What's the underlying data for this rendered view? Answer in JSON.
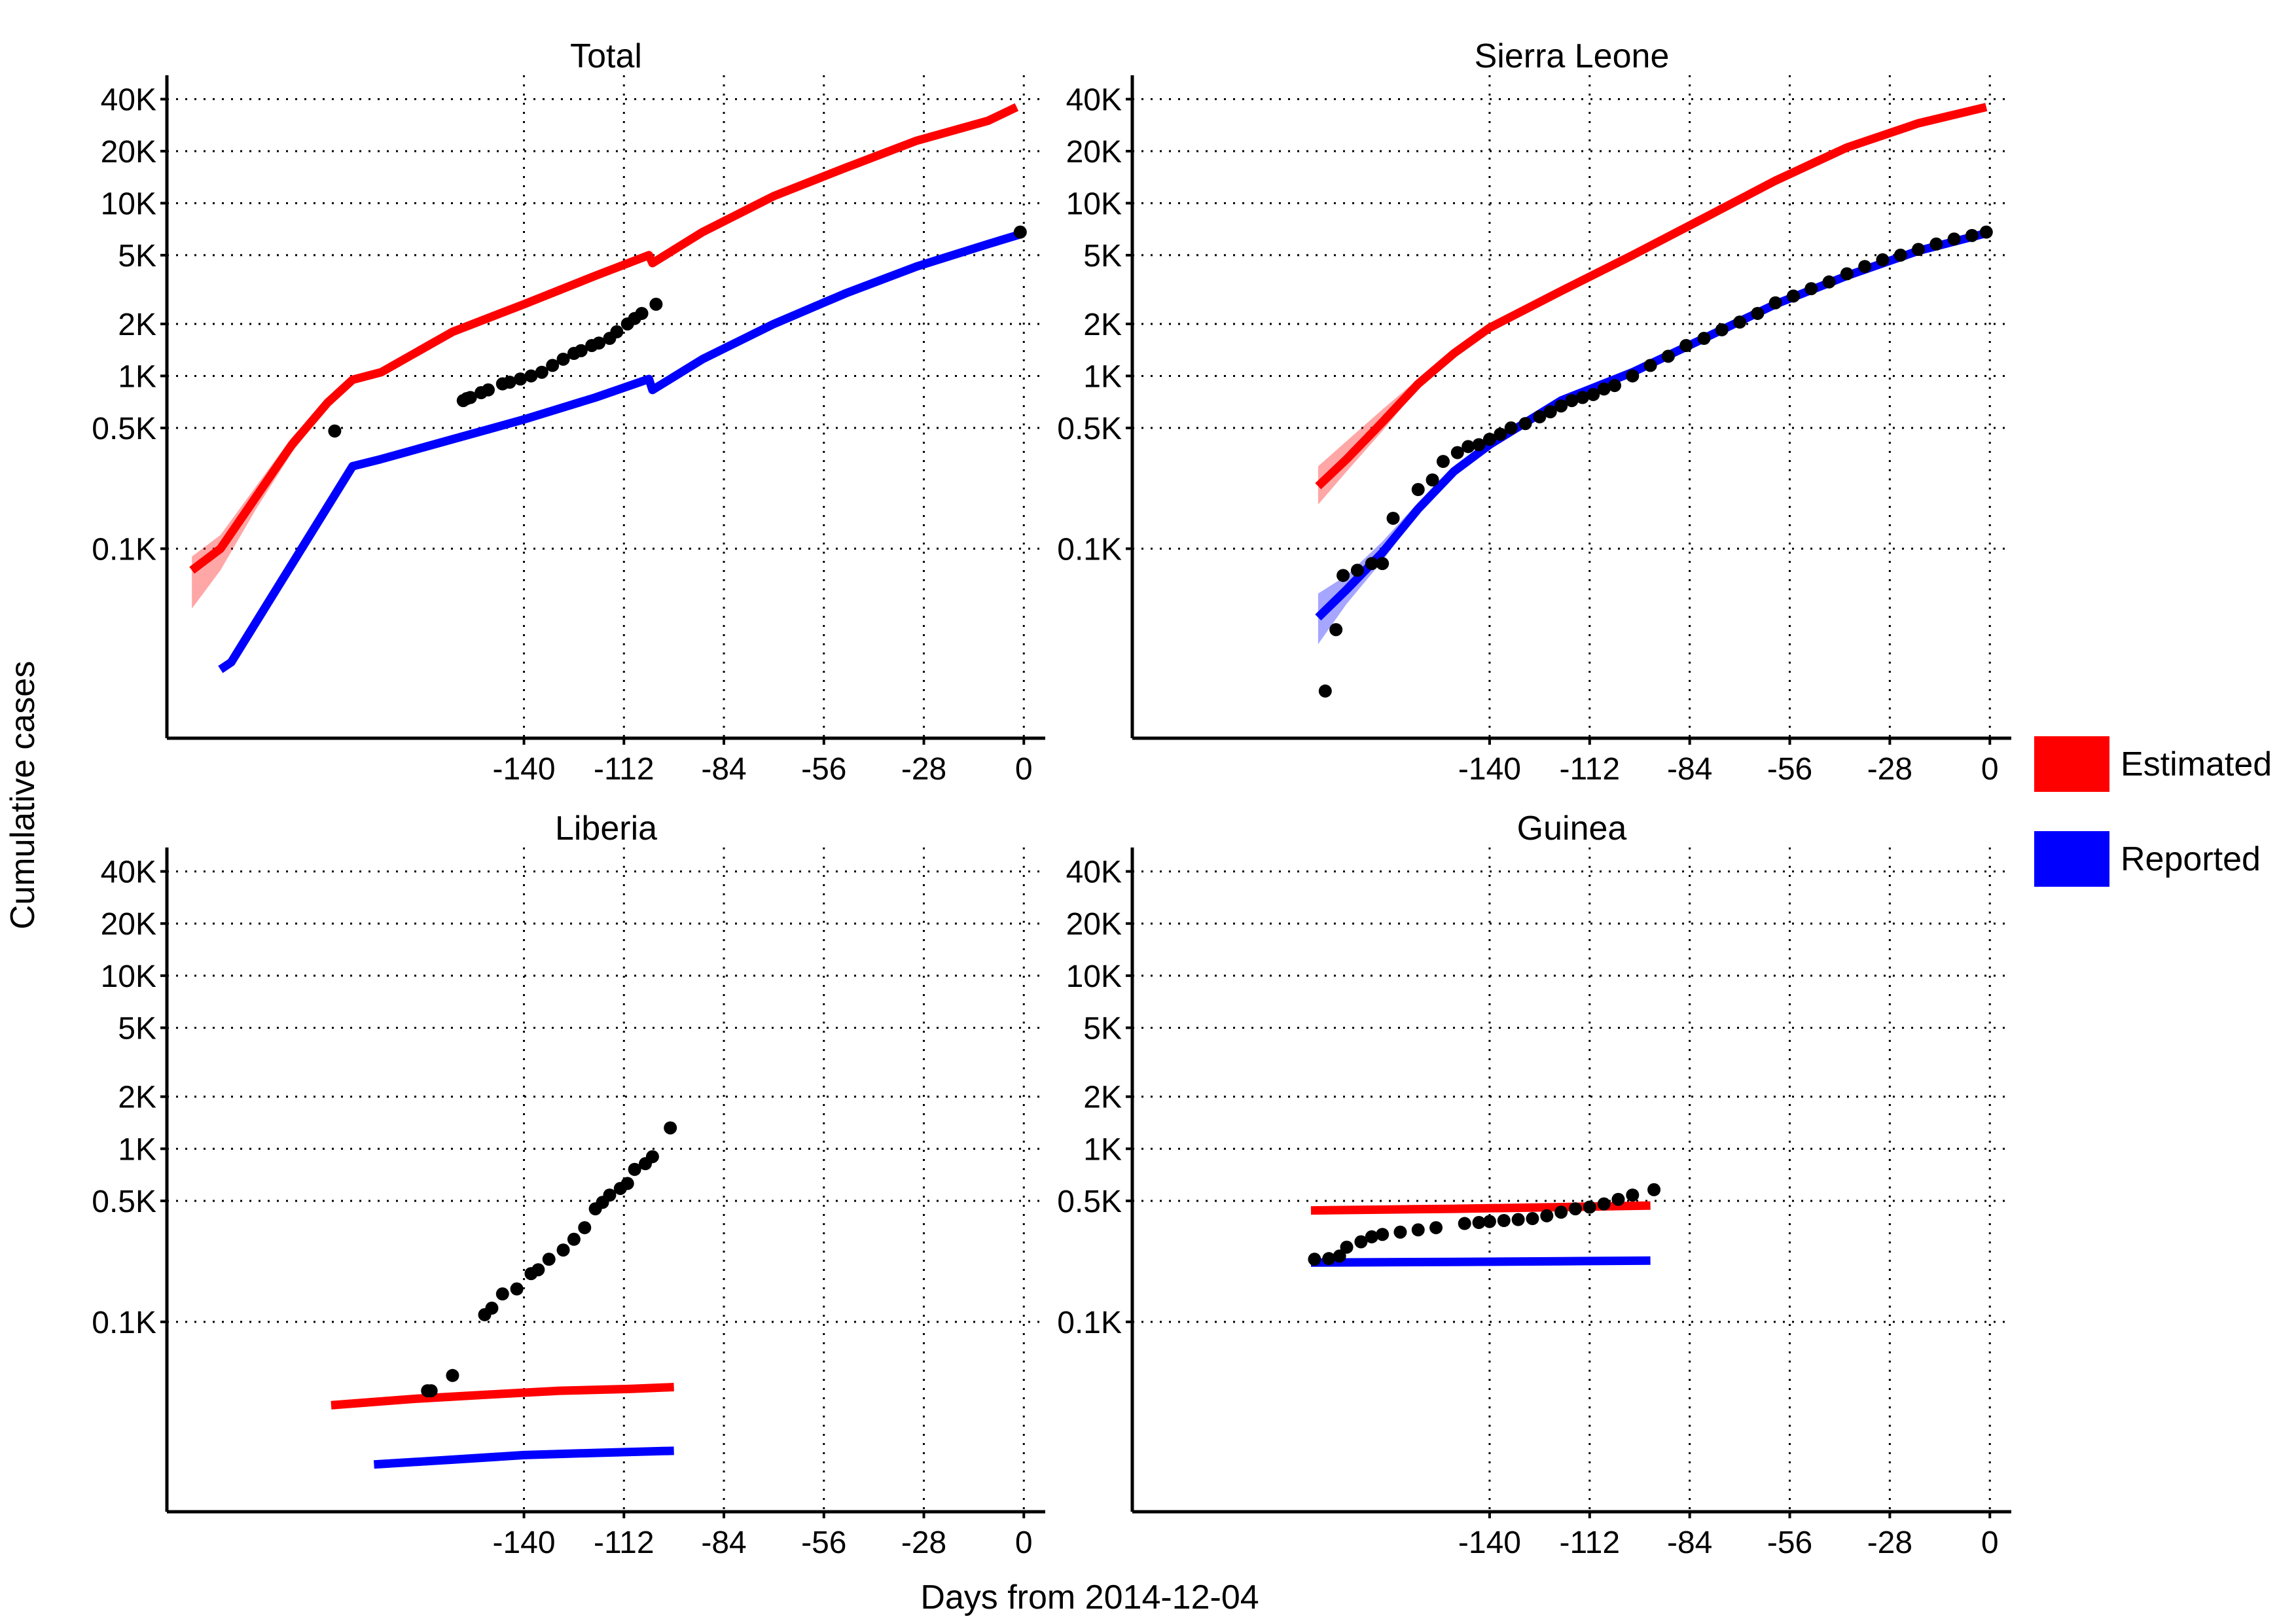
{
  "figure": {
    "xlabel": "Days from 2014-12-04",
    "ylabel": "Cumulative cases"
  },
  "legend": {
    "placement": "right",
    "items": [
      {
        "label": "Estimated",
        "color": "#ff0000"
      },
      {
        "label": "Reported",
        "color": "#0000ff"
      }
    ]
  },
  "chart_data": [
    {
      "type": "line",
      "title": "Total",
      "x_ticks": [
        -140,
        -112,
        -84,
        -56,
        -28,
        0
      ],
      "y_ticks": [
        {
          "value": 100,
          "label": "0.1K"
        },
        {
          "value": 500,
          "label": "0.5K"
        },
        {
          "value": 1000,
          "label": "1K"
        },
        {
          "value": 2000,
          "label": "2K"
        },
        {
          "value": 5000,
          "label": "5K"
        },
        {
          "value": 10000,
          "label": "10K"
        },
        {
          "value": 20000,
          "label": "20K"
        },
        {
          "value": 40000,
          "label": "40K"
        }
      ],
      "y_scale": "log",
      "grid": true,
      "series": [
        {
          "name": "Estimated",
          "color": "#ff0000",
          "x": [
            -233,
            -225,
            -215,
            -205,
            -195,
            -188,
            -180,
            -160,
            -140,
            -120,
            -105,
            -104,
            -90,
            -70,
            -50,
            -30,
            -10,
            -2
          ],
          "y": [
            75,
            100,
            200,
            400,
            700,
            950,
            1050,
            1800,
            2600,
            3800,
            5000,
            4500,
            6800,
            11000,
            16000,
            23000,
            30000,
            36000
          ],
          "band_lower": [
            45,
            75,
            170,
            360,
            660,
            950,
            1050,
            1800,
            2600,
            3800,
            5000,
            4500,
            6800,
            11000,
            16000,
            23000,
            30000,
            36000
          ],
          "band_upper": [
            90,
            120,
            230,
            440,
            740,
            950,
            1050,
            1800,
            2600,
            3800,
            5000,
            4500,
            6800,
            11000,
            16000,
            23000,
            30000,
            36000
          ]
        },
        {
          "name": "Reported",
          "color": "#0000ff",
          "x": [
            -225,
            -222,
            -188,
            -180,
            -160,
            -140,
            -120,
            -105,
            -104,
            -90,
            -70,
            -50,
            -30,
            -10,
            -1
          ],
          "y": [
            20,
            22,
            300,
            330,
            430,
            560,
            750,
            960,
            830,
            1250,
            2000,
            3000,
            4300,
            5800,
            6600
          ]
        }
      ],
      "observed": {
        "x": [
          -193,
          -157,
          -156,
          -155,
          -152,
          -150,
          -146,
          -144,
          -141,
          -138,
          -135,
          -132,
          -129,
          -126,
          -124,
          -121,
          -119,
          -116,
          -114,
          -111,
          -109,
          -107,
          -103,
          -1
        ],
        "y": [
          480,
          720,
          740,
          750,
          800,
          830,
          900,
          920,
          960,
          1000,
          1050,
          1150,
          1250,
          1350,
          1400,
          1500,
          1550,
          1650,
          1800,
          2000,
          2150,
          2300,
          2600,
          6800
        ]
      }
    },
    {
      "type": "line",
      "title": "Sierra Leone",
      "x_ticks": [
        -140,
        -112,
        -84,
        -56,
        -28,
        0
      ],
      "y_ticks": [
        {
          "value": 100,
          "label": "0.1K"
        },
        {
          "value": 500,
          "label": "0.5K"
        },
        {
          "value": 1000,
          "label": "1K"
        },
        {
          "value": 2000,
          "label": "2K"
        },
        {
          "value": 5000,
          "label": "5K"
        },
        {
          "value": 10000,
          "label": "10K"
        },
        {
          "value": 20000,
          "label": "20K"
        },
        {
          "value": 40000,
          "label": "40K"
        }
      ],
      "y_scale": "log",
      "grid": true,
      "series": [
        {
          "name": "Estimated",
          "color": "#ff0000",
          "x": [
            -188,
            -180,
            -170,
            -160,
            -150,
            -140,
            -120,
            -100,
            -80,
            -60,
            -40,
            -20,
            -1
          ],
          "y": [
            230,
            330,
            540,
            900,
            1350,
            1900,
            3100,
            5000,
            8200,
            13500,
            21000,
            29000,
            36000
          ],
          "band_lower": [
            180,
            280,
            480,
            850,
            1300,
            1850,
            3100,
            5000,
            8200,
            13500,
            21000,
            29000,
            36000
          ],
          "band_upper": [
            300,
            420,
            640,
            960,
            1400,
            1950,
            3100,
            5000,
            8200,
            13500,
            21000,
            29000,
            36000
          ]
        },
        {
          "name": "Reported",
          "color": "#0000ff",
          "x": [
            -188,
            -180,
            -170,
            -160,
            -150,
            -140,
            -120,
            -100,
            -80,
            -60,
            -40,
            -20,
            -1
          ],
          "y": [
            40,
            58,
            95,
            170,
            280,
            400,
            720,
            1050,
            1650,
            2600,
            3800,
            5300,
            6700
          ],
          "band_lower": [
            28,
            48,
            85,
            160,
            270,
            395,
            720,
            1050,
            1650,
            2600,
            3800,
            5300,
            6700
          ],
          "band_upper": [
            55,
            70,
            110,
            185,
            295,
            410,
            720,
            1050,
            1650,
            2600,
            3800,
            5300,
            6700
          ]
        }
      ],
      "observed": {
        "x": [
          -186,
          -183,
          -181,
          -177,
          -173,
          -170,
          -167,
          -160,
          -156,
          -153,
          -149,
          -146,
          -143,
          -140,
          -137,
          -134,
          -130,
          -126,
          -123,
          -120,
          -117,
          -114,
          -111,
          -108,
          -105,
          -100,
          -95,
          -90,
          -85,
          -80,
          -75,
          -70,
          -65,
          -60,
          -55,
          -50,
          -45,
          -40,
          -35,
          -30,
          -25,
          -20,
          -15,
          -10,
          -5,
          -1
        ],
        "y": [
          15,
          34,
          70,
          75,
          82,
          82,
          150,
          220,
          250,
          320,
          360,
          390,
          400,
          430,
          460,
          500,
          530,
          580,
          620,
          670,
          720,
          750,
          780,
          840,
          880,
          1000,
          1150,
          1300,
          1500,
          1650,
          1850,
          2050,
          2300,
          2650,
          2900,
          3200,
          3500,
          3900,
          4300,
          4700,
          5000,
          5400,
          5800,
          6200,
          6500,
          6800
        ]
      }
    },
    {
      "type": "line",
      "title": "Liberia",
      "x_ticks": [
        -140,
        -112,
        -84,
        -56,
        -28,
        0
      ],
      "y_ticks": [
        {
          "value": 100,
          "label": "0.1K"
        },
        {
          "value": 500,
          "label": "0.5K"
        },
        {
          "value": 1000,
          "label": "1K"
        },
        {
          "value": 2000,
          "label": "2K"
        },
        {
          "value": 5000,
          "label": "5K"
        },
        {
          "value": 10000,
          "label": "10K"
        },
        {
          "value": 20000,
          "label": "20K"
        },
        {
          "value": 40000,
          "label": "40K"
        }
      ],
      "y_scale": "log",
      "grid": true,
      "series": [
        {
          "name": "Estimated",
          "color": "#ff0000",
          "x": [
            -194,
            -170,
            -150,
            -130,
            -110,
            -98
          ],
          "y": [
            33,
            36,
            38,
            40,
            41,
            42
          ]
        },
        {
          "name": "Reported",
          "color": "#0000ff",
          "x": [
            -182,
            -160,
            -140,
            -120,
            -98
          ],
          "y": [
            15,
            16,
            17,
            17.5,
            18
          ]
        }
      ],
      "observed": {
        "x": [
          -167,
          -166,
          -160,
          -151,
          -149,
          -146,
          -142,
          -138,
          -136,
          -133,
          -129,
          -126,
          -123,
          -120,
          -118,
          -116,
          -113,
          -111,
          -109,
          -106,
          -104,
          -99
        ],
        "y": [
          40,
          40,
          49,
          110,
          120,
          145,
          155,
          190,
          200,
          230,
          260,
          300,
          350,
          450,
          490,
          540,
          590,
          630,
          760,
          820,
          900,
          1320
        ]
      }
    },
    {
      "type": "line",
      "title": "Guinea",
      "x_ticks": [
        -140,
        -112,
        -84,
        -56,
        -28,
        0
      ],
      "y_ticks": [
        {
          "value": 100,
          "label": "0.1K"
        },
        {
          "value": 500,
          "label": "0.5K"
        },
        {
          "value": 1000,
          "label": "1K"
        },
        {
          "value": 2000,
          "label": "2K"
        },
        {
          "value": 5000,
          "label": "5K"
        },
        {
          "value": 10000,
          "label": "10K"
        },
        {
          "value": 20000,
          "label": "20K"
        },
        {
          "value": 40000,
          "label": "40K"
        }
      ],
      "y_scale": "log",
      "grid": true,
      "series": [
        {
          "name": "Estimated",
          "color": "#ff0000",
          "x": [
            -190,
            -150,
            -120,
            -95
          ],
          "y": [
            440,
            450,
            460,
            470
          ]
        },
        {
          "name": "Reported",
          "color": "#0000ff",
          "x": [
            -190,
            -150,
            -120,
            -95
          ],
          "y": [
            220,
            222,
            224,
            226
          ]
        }
      ],
      "observed": {
        "x": [
          -189,
          -185,
          -182,
          -180,
          -176,
          -173,
          -170,
          -165,
          -160,
          -155,
          -147,
          -143,
          -140,
          -136,
          -132,
          -128,
          -124,
          -120,
          -116,
          -112,
          -108,
          -104,
          -100,
          -94
        ],
        "y": [
          230,
          232,
          240,
          270,
          290,
          310,
          320,
          330,
          340,
          350,
          370,
          375,
          380,
          385,
          390,
          395,
          410,
          430,
          450,
          460,
          480,
          510,
          540,
          580
        ]
      }
    }
  ]
}
